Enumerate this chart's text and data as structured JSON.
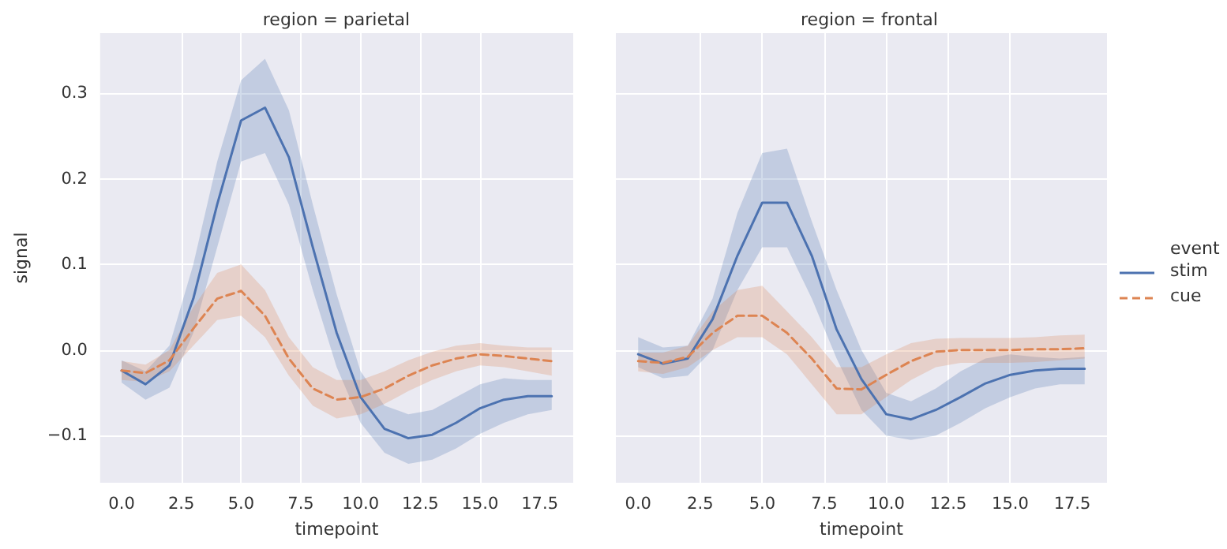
{
  "chart_data": [
    {
      "type": "line",
      "title": "region = parietal",
      "xlabel": "timepoint",
      "ylabel": "signal",
      "x": [
        0,
        1,
        2,
        3,
        4,
        5,
        6,
        7,
        8,
        9,
        10,
        11,
        12,
        13,
        14,
        15,
        16,
        17,
        18
      ],
      "xlim": [
        -0.9,
        18.9
      ],
      "ylim": [
        -0.155,
        0.37
      ],
      "xticks": [
        {
          "value": 0,
          "label": "0.0"
        },
        2.5,
        {
          "value": 5,
          "label": "5.0"
        },
        7.5,
        {
          "value": 10,
          "label": "10.0"
        },
        12.5,
        {
          "value": 15,
          "label": "15.0"
        },
        17.5
      ],
      "yticks": [
        {
          "value": -0.1,
          "label": "−0.1"
        },
        {
          "value": 0,
          "label": "0.0"
        },
        0.1,
        0.2,
        0.3
      ],
      "grid": true,
      "series": [
        {
          "color": "#4c72b0",
          "line_style": "solid",
          "values": [
            -0.024,
            -0.04,
            -0.018,
            0.06,
            0.17,
            0.268,
            0.283,
            0.225,
            0.12,
            0.02,
            -0.055,
            -0.092,
            -0.103,
            -0.099,
            -0.085,
            -0.068,
            -0.058,
            -0.054,
            -0.054
          ],
          "lower": [
            -0.038,
            -0.058,
            -0.044,
            0.02,
            0.12,
            0.22,
            0.23,
            0.17,
            0.07,
            -0.02,
            -0.085,
            -0.12,
            -0.133,
            -0.128,
            -0.115,
            -0.098,
            -0.085,
            -0.075,
            -0.07
          ],
          "upper": [
            -0.012,
            -0.025,
            0.005,
            0.1,
            0.22,
            0.315,
            0.34,
            0.28,
            0.17,
            0.065,
            -0.025,
            -0.065,
            -0.075,
            -0.07,
            -0.055,
            -0.04,
            -0.033,
            -0.035,
            -0.035
          ]
        },
        {
          "color": "#dd8452",
          "line_style": "dashed",
          "values": [
            -0.024,
            -0.027,
            -0.012,
            0.025,
            0.06,
            0.069,
            0.04,
            -0.01,
            -0.045,
            -0.058,
            -0.055,
            -0.045,
            -0.03,
            -0.018,
            -0.01,
            -0.005,
            -0.007,
            -0.01,
            -0.013
          ],
          "lower": [
            -0.035,
            -0.037,
            -0.025,
            0.005,
            0.035,
            0.04,
            0.015,
            -0.03,
            -0.065,
            -0.08,
            -0.075,
            -0.063,
            -0.048,
            -0.035,
            -0.025,
            -0.018,
            -0.02,
            -0.025,
            -0.03
          ],
          "upper": [
            -0.013,
            -0.017,
            0.0,
            0.05,
            0.09,
            0.1,
            0.07,
            0.015,
            -0.02,
            -0.035,
            -0.035,
            -0.025,
            -0.012,
            -0.002,
            0.005,
            0.008,
            0.005,
            0.003,
            0.003
          ]
        }
      ]
    },
    {
      "type": "line",
      "title": "region = frontal",
      "xlabel": "timepoint",
      "legend": "right",
      "legend_title": "event",
      "tick_labels": "x",
      "x": [
        0,
        1,
        2,
        3,
        4,
        5,
        6,
        7,
        8,
        9,
        10,
        11,
        12,
        13,
        14,
        15,
        16,
        17,
        18
      ],
      "xlim": [
        -0.9,
        18.9
      ],
      "ylim": [
        -0.155,
        0.37
      ],
      "xticks": [
        {
          "value": 0,
          "label": "0.0"
        },
        2.5,
        {
          "value": 5,
          "label": "5.0"
        },
        7.5,
        {
          "value": 10,
          "label": "10.0"
        },
        12.5,
        {
          "value": 15,
          "label": "15.0"
        },
        17.5
      ],
      "yticks": [
        -0.1,
        0,
        0.1,
        0.2,
        0.3
      ],
      "grid": true,
      "series": [
        {
          "name": "stim",
          "color": "#4c72b0",
          "line_style": "solid",
          "values": [
            -0.005,
            -0.016,
            -0.01,
            0.036,
            0.11,
            0.172,
            0.172,
            0.11,
            0.024,
            -0.034,
            -0.075,
            -0.081,
            -0.07,
            -0.055,
            -0.039,
            -0.029,
            -0.024,
            -0.022,
            -0.022
          ],
          "lower": [
            -0.02,
            -0.033,
            -0.03,
            0.0,
            0.07,
            0.12,
            0.12,
            0.06,
            -0.01,
            -0.07,
            -0.1,
            -0.105,
            -0.1,
            -0.085,
            -0.068,
            -0.055,
            -0.045,
            -0.04,
            -0.04
          ],
          "upper": [
            0.015,
            0.003,
            0.005,
            0.06,
            0.16,
            0.23,
            0.235,
            0.15,
            0.07,
            0.0,
            -0.05,
            -0.06,
            -0.045,
            -0.025,
            -0.01,
            -0.005,
            -0.008,
            -0.01,
            -0.008
          ]
        },
        {
          "name": "cue",
          "color": "#dd8452",
          "line_style": "dashed",
          "values": [
            -0.013,
            -0.015,
            -0.008,
            0.02,
            0.04,
            0.04,
            0.02,
            -0.01,
            -0.045,
            -0.046,
            -0.029,
            -0.013,
            -0.002,
            0.0,
            0.0,
            0.0,
            0.001,
            0.001,
            0.002
          ],
          "lower": [
            -0.025,
            -0.028,
            -0.02,
            0.0,
            0.015,
            0.015,
            -0.005,
            -0.04,
            -0.075,
            -0.075,
            -0.055,
            -0.035,
            -0.02,
            -0.015,
            -0.015,
            -0.015,
            -0.014,
            -0.012,
            -0.01
          ],
          "upper": [
            -0.003,
            -0.003,
            0.005,
            0.045,
            0.07,
            0.075,
            0.045,
            0.015,
            -0.02,
            -0.02,
            -0.005,
            0.008,
            0.013,
            0.014,
            0.014,
            0.014,
            0.015,
            0.017,
            0.018
          ]
        }
      ]
    }
  ]
}
